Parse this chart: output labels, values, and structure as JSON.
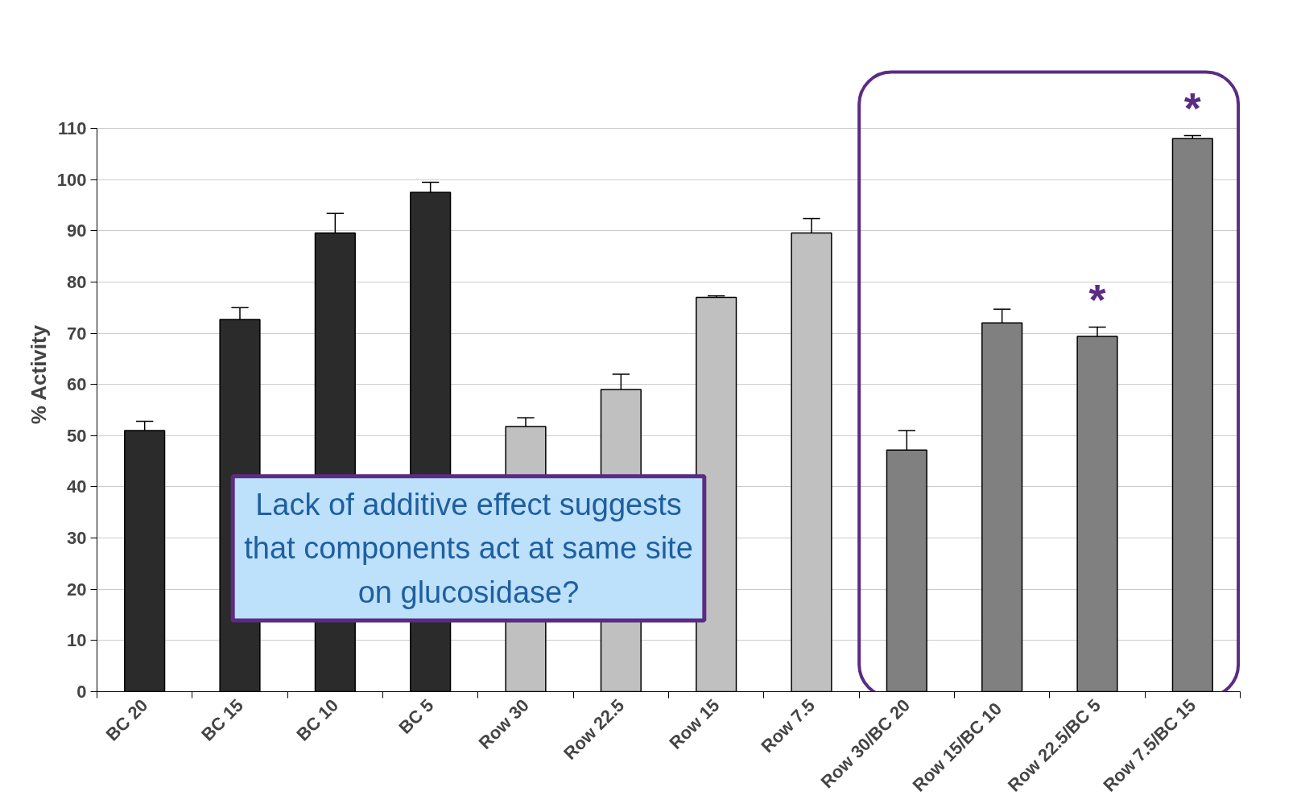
{
  "chart_data": {
    "type": "bar",
    "ylabel": "% Activity",
    "categories": [
      "BC 20",
      "BC 15",
      "BC 10",
      "BC 5",
      "Row 30",
      "Row 22.5",
      "Row 15",
      "Row 7.5",
      "Row 30/BC 20",
      "Row  15/BC 10",
      "Row 22.5/BC 5",
      "Row 7.5/BC 15"
    ],
    "values": [
      51,
      72.7,
      89.6,
      97.5,
      51.8,
      59,
      77,
      89.6,
      47.2,
      72,
      69.4,
      108
    ],
    "errors": [
      [
        51,
        52.8
      ],
      [
        72.7,
        75
      ],
      [
        89.6,
        93.4
      ],
      [
        97.5,
        99.5
      ],
      [
        51.8,
        53.5
      ],
      [
        59,
        62
      ],
      [
        77,
        77.3
      ],
      [
        89.6,
        92.4
      ],
      [
        47.2,
        51
      ],
      [
        72,
        74.7
      ],
      [
        69.4,
        71.2
      ],
      [
        108,
        108.6
      ]
    ],
    "colors": [
      "#2b2b2b",
      "#2b2b2b",
      "#2b2b2b",
      "#2b2b2b",
      "#c0c0c0",
      "#c0c0c0",
      "#c0c0c0",
      "#c0c0c0",
      "#808080",
      "#808080",
      "#808080",
      "#808080"
    ],
    "ylim": [
      0,
      110
    ],
    "yticks": [
      0,
      10,
      20,
      30,
      40,
      50,
      60,
      70,
      80,
      90,
      100,
      110
    ],
    "grid": "y",
    "annotations": [
      "Lack of additive effect suggests that components act at same site on glucosidase?",
      {
        "text": "*",
        "x": "Row 22.5/BC 5",
        "y": 71.2
      },
      {
        "text": "*",
        "x": "Row 7.5/BC 15",
        "y": 108.6
      }
    ]
  }
}
